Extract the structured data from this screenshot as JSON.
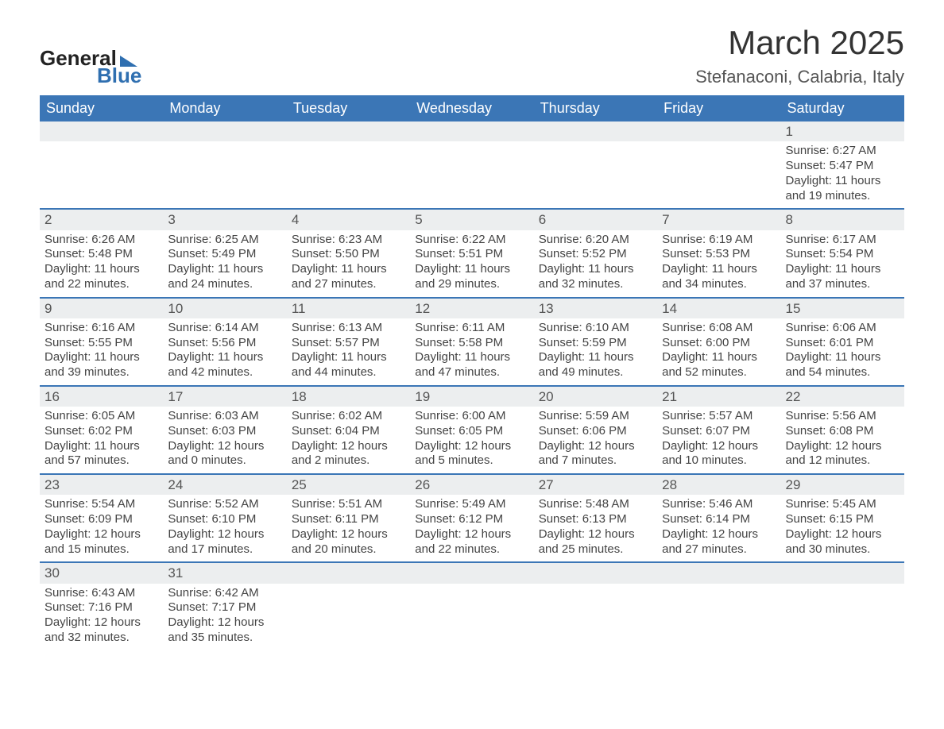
{
  "logo": {
    "word1": "General",
    "word2": "Blue"
  },
  "title": "March 2025",
  "subtitle": "Stefanaconi, Calabria, Italy",
  "colors": {
    "header_bg": "#3b76b6",
    "header_text": "#ffffff",
    "row_border": "#3b76b6",
    "daynum_bg": "#eceeef",
    "text": "#444444",
    "logo_accent": "#2f6fb0"
  },
  "typography": {
    "title_fontsize": 42,
    "subtitle_fontsize": 22,
    "header_fontsize": 18,
    "body_fontsize": 15,
    "daynum_fontsize": 17
  },
  "weekdays": [
    "Sunday",
    "Monday",
    "Tuesday",
    "Wednesday",
    "Thursday",
    "Friday",
    "Saturday"
  ],
  "weeks": [
    [
      null,
      null,
      null,
      null,
      null,
      null,
      {
        "n": "1",
        "r": "Sunrise: 6:27 AM",
        "s": "Sunset: 5:47 PM",
        "d1": "Daylight: 11 hours",
        "d2": "and 19 minutes."
      }
    ],
    [
      {
        "n": "2",
        "r": "Sunrise: 6:26 AM",
        "s": "Sunset: 5:48 PM",
        "d1": "Daylight: 11 hours",
        "d2": "and 22 minutes."
      },
      {
        "n": "3",
        "r": "Sunrise: 6:25 AM",
        "s": "Sunset: 5:49 PM",
        "d1": "Daylight: 11 hours",
        "d2": "and 24 minutes."
      },
      {
        "n": "4",
        "r": "Sunrise: 6:23 AM",
        "s": "Sunset: 5:50 PM",
        "d1": "Daylight: 11 hours",
        "d2": "and 27 minutes."
      },
      {
        "n": "5",
        "r": "Sunrise: 6:22 AM",
        "s": "Sunset: 5:51 PM",
        "d1": "Daylight: 11 hours",
        "d2": "and 29 minutes."
      },
      {
        "n": "6",
        "r": "Sunrise: 6:20 AM",
        "s": "Sunset: 5:52 PM",
        "d1": "Daylight: 11 hours",
        "d2": "and 32 minutes."
      },
      {
        "n": "7",
        "r": "Sunrise: 6:19 AM",
        "s": "Sunset: 5:53 PM",
        "d1": "Daylight: 11 hours",
        "d2": "and 34 minutes."
      },
      {
        "n": "8",
        "r": "Sunrise: 6:17 AM",
        "s": "Sunset: 5:54 PM",
        "d1": "Daylight: 11 hours",
        "d2": "and 37 minutes."
      }
    ],
    [
      {
        "n": "9",
        "r": "Sunrise: 6:16 AM",
        "s": "Sunset: 5:55 PM",
        "d1": "Daylight: 11 hours",
        "d2": "and 39 minutes."
      },
      {
        "n": "10",
        "r": "Sunrise: 6:14 AM",
        "s": "Sunset: 5:56 PM",
        "d1": "Daylight: 11 hours",
        "d2": "and 42 minutes."
      },
      {
        "n": "11",
        "r": "Sunrise: 6:13 AM",
        "s": "Sunset: 5:57 PM",
        "d1": "Daylight: 11 hours",
        "d2": "and 44 minutes."
      },
      {
        "n": "12",
        "r": "Sunrise: 6:11 AM",
        "s": "Sunset: 5:58 PM",
        "d1": "Daylight: 11 hours",
        "d2": "and 47 minutes."
      },
      {
        "n": "13",
        "r": "Sunrise: 6:10 AM",
        "s": "Sunset: 5:59 PM",
        "d1": "Daylight: 11 hours",
        "d2": "and 49 minutes."
      },
      {
        "n": "14",
        "r": "Sunrise: 6:08 AM",
        "s": "Sunset: 6:00 PM",
        "d1": "Daylight: 11 hours",
        "d2": "and 52 minutes."
      },
      {
        "n": "15",
        "r": "Sunrise: 6:06 AM",
        "s": "Sunset: 6:01 PM",
        "d1": "Daylight: 11 hours",
        "d2": "and 54 minutes."
      }
    ],
    [
      {
        "n": "16",
        "r": "Sunrise: 6:05 AM",
        "s": "Sunset: 6:02 PM",
        "d1": "Daylight: 11 hours",
        "d2": "and 57 minutes."
      },
      {
        "n": "17",
        "r": "Sunrise: 6:03 AM",
        "s": "Sunset: 6:03 PM",
        "d1": "Daylight: 12 hours",
        "d2": "and 0 minutes."
      },
      {
        "n": "18",
        "r": "Sunrise: 6:02 AM",
        "s": "Sunset: 6:04 PM",
        "d1": "Daylight: 12 hours",
        "d2": "and 2 minutes."
      },
      {
        "n": "19",
        "r": "Sunrise: 6:00 AM",
        "s": "Sunset: 6:05 PM",
        "d1": "Daylight: 12 hours",
        "d2": "and 5 minutes."
      },
      {
        "n": "20",
        "r": "Sunrise: 5:59 AM",
        "s": "Sunset: 6:06 PM",
        "d1": "Daylight: 12 hours",
        "d2": "and 7 minutes."
      },
      {
        "n": "21",
        "r": "Sunrise: 5:57 AM",
        "s": "Sunset: 6:07 PM",
        "d1": "Daylight: 12 hours",
        "d2": "and 10 minutes."
      },
      {
        "n": "22",
        "r": "Sunrise: 5:56 AM",
        "s": "Sunset: 6:08 PM",
        "d1": "Daylight: 12 hours",
        "d2": "and 12 minutes."
      }
    ],
    [
      {
        "n": "23",
        "r": "Sunrise: 5:54 AM",
        "s": "Sunset: 6:09 PM",
        "d1": "Daylight: 12 hours",
        "d2": "and 15 minutes."
      },
      {
        "n": "24",
        "r": "Sunrise: 5:52 AM",
        "s": "Sunset: 6:10 PM",
        "d1": "Daylight: 12 hours",
        "d2": "and 17 minutes."
      },
      {
        "n": "25",
        "r": "Sunrise: 5:51 AM",
        "s": "Sunset: 6:11 PM",
        "d1": "Daylight: 12 hours",
        "d2": "and 20 minutes."
      },
      {
        "n": "26",
        "r": "Sunrise: 5:49 AM",
        "s": "Sunset: 6:12 PM",
        "d1": "Daylight: 12 hours",
        "d2": "and 22 minutes."
      },
      {
        "n": "27",
        "r": "Sunrise: 5:48 AM",
        "s": "Sunset: 6:13 PM",
        "d1": "Daylight: 12 hours",
        "d2": "and 25 minutes."
      },
      {
        "n": "28",
        "r": "Sunrise: 5:46 AM",
        "s": "Sunset: 6:14 PM",
        "d1": "Daylight: 12 hours",
        "d2": "and 27 minutes."
      },
      {
        "n": "29",
        "r": "Sunrise: 5:45 AM",
        "s": "Sunset: 6:15 PM",
        "d1": "Daylight: 12 hours",
        "d2": "and 30 minutes."
      }
    ],
    [
      {
        "n": "30",
        "r": "Sunrise: 6:43 AM",
        "s": "Sunset: 7:16 PM",
        "d1": "Daylight: 12 hours",
        "d2": "and 32 minutes."
      },
      {
        "n": "31",
        "r": "Sunrise: 6:42 AM",
        "s": "Sunset: 7:17 PM",
        "d1": "Daylight: 12 hours",
        "d2": "and 35 minutes."
      },
      null,
      null,
      null,
      null,
      null
    ]
  ]
}
